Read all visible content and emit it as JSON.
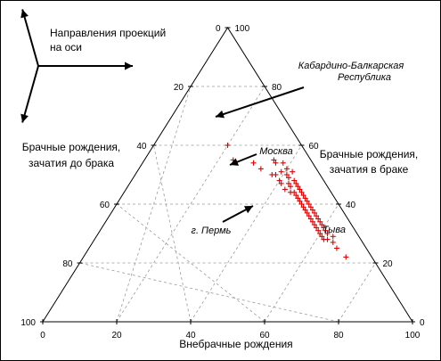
{
  "chart_data": {
    "type": "ternary",
    "legend_label": "Направления проекций на оси",
    "left_axis_label": [
      "Брачные рождения,",
      "зачатия до брака"
    ],
    "right_axis_label": [
      "Брачные рождения,",
      "зачатия в браке"
    ],
    "bottom_axis_label": "Внебрачные рождения",
    "left_ticks": [
      "0",
      "20",
      "40",
      "60",
      "80",
      "100"
    ],
    "right_ticks": [
      "100",
      "80",
      "60",
      "40",
      "20",
      "0"
    ],
    "bottom_ticks": [
      "0",
      "20",
      "40",
      "60",
      "80",
      "100"
    ],
    "annotations": [
      {
        "label": "Кабардино-Балкарская\nРеспублика",
        "a": 20,
        "b": 60,
        "c": 20
      },
      {
        "label": "Москва",
        "a": 38,
        "b": 46,
        "c": 16
      },
      {
        "label": "г. Пермь",
        "a": 59,
        "b": 33,
        "c": 8
      },
      {
        "label": "Тыва",
        "a": 71,
        "b": 22,
        "c": 7
      }
    ],
    "points": [
      [
        20,
        60,
        20
      ],
      [
        24,
        55,
        21
      ],
      [
        30,
        54,
        16
      ],
      [
        33,
        52,
        15
      ],
      [
        35,
        55,
        10
      ],
      [
        36,
        54,
        10
      ],
      [
        37,
        50,
        13
      ],
      [
        38,
        50,
        12
      ],
      [
        38,
        54,
        8
      ],
      [
        39,
        51,
        10
      ],
      [
        40,
        52,
        8
      ],
      [
        40,
        48,
        12
      ],
      [
        41,
        50,
        9
      ],
      [
        41,
        47,
        12
      ],
      [
        42,
        49,
        9
      ],
      [
        42,
        51,
        7
      ],
      [
        43,
        47,
        10
      ],
      [
        43,
        45,
        12
      ],
      [
        44,
        48,
        8
      ],
      [
        44,
        46,
        10
      ],
      [
        45,
        47,
        8
      ],
      [
        45,
        44,
        11
      ],
      [
        46,
        46,
        8
      ],
      [
        46,
        44,
        10
      ],
      [
        47,
        45,
        8
      ],
      [
        47,
        43,
        10
      ],
      [
        48,
        44,
        8
      ],
      [
        48,
        42,
        10
      ],
      [
        49,
        43,
        8
      ],
      [
        49,
        41,
        10
      ],
      [
        50,
        42,
        8
      ],
      [
        50,
        40,
        10
      ],
      [
        51,
        41,
        8
      ],
      [
        51,
        39,
        10
      ],
      [
        52,
        40,
        8
      ],
      [
        52,
        38,
        10
      ],
      [
        53,
        39,
        8
      ],
      [
        53,
        37,
        10
      ],
      [
        54,
        38,
        8
      ],
      [
        54,
        36,
        10
      ],
      [
        55,
        37,
        8
      ],
      [
        55,
        35,
        10
      ],
      [
        56,
        36,
        8
      ],
      [
        56,
        34,
        10
      ],
      [
        57,
        35,
        8
      ],
      [
        57,
        33,
        10
      ],
      [
        58,
        34,
        8
      ],
      [
        58,
        32,
        10
      ],
      [
        59,
        33,
        8
      ],
      [
        59,
        31,
        10
      ],
      [
        60,
        32,
        8
      ],
      [
        60,
        30,
        10
      ],
      [
        61,
        31,
        8
      ],
      [
        61,
        29,
        10
      ],
      [
        62,
        30,
        8
      ],
      [
        62,
        28,
        10
      ],
      [
        63,
        28,
        9
      ],
      [
        64,
        29,
        7
      ],
      [
        65,
        27,
        8
      ],
      [
        67,
        25,
        8
      ],
      [
        71,
        22,
        7
      ]
    ]
  }
}
